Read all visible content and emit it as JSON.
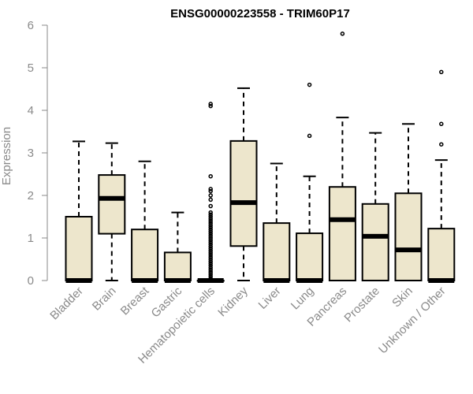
{
  "chart_data": {
    "type": "box",
    "title": "ENSG00000223558 - TRIM60P17",
    "xlabel": "",
    "ylabel": "Expression",
    "ylim": [
      0,
      6
    ],
    "yticks": [
      0,
      1,
      2,
      3,
      4,
      5,
      6
    ],
    "grid": false,
    "legend": "none",
    "box_fill": "#ede6cc",
    "box_stroke": "#000000",
    "categories": [
      "Bladder",
      "Brain",
      "Breast",
      "Gastric",
      "Hematopoietic cells",
      "Kidney",
      "Liver",
      "Lung",
      "Pancreas",
      "Prostate",
      "Skin",
      "Unknown / Other"
    ],
    "boxes": [
      {
        "category": "Bladder",
        "min": 0,
        "q1": 0,
        "median": 0,
        "q3": 1.5,
        "max": 3.27,
        "outliers": []
      },
      {
        "category": "Brain",
        "min": 0,
        "q1": 1.1,
        "median": 1.93,
        "q3": 2.48,
        "max": 3.23,
        "outliers": []
      },
      {
        "category": "Breast",
        "min": 0,
        "q1": 0,
        "median": 0,
        "q3": 1.2,
        "max": 2.8,
        "outliers": []
      },
      {
        "category": "Gastric",
        "min": 0,
        "q1": 0,
        "median": 0,
        "q3": 0.66,
        "max": 1.6,
        "outliers": []
      },
      {
        "category": "Hematopoietic cells",
        "min": 0,
        "q1": 0,
        "median": 0,
        "q3": 0,
        "max": 0,
        "outliers": [
          0.05,
          0.1,
          0.15,
          0.2,
          0.25,
          0.3,
          0.35,
          0.4,
          0.45,
          0.5,
          0.55,
          0.6,
          0.65,
          0.7,
          0.75,
          0.8,
          0.85,
          0.9,
          0.95,
          1.0,
          1.05,
          1.1,
          1.15,
          1.2,
          1.25,
          1.3,
          1.35,
          1.4,
          1.45,
          1.5,
          1.55,
          1.6,
          1.75,
          1.9,
          2.0,
          2.1,
          2.15,
          2.45,
          4.1,
          4.15
        ]
      },
      {
        "category": "Kidney",
        "min": 0,
        "q1": 0.81,
        "median": 1.83,
        "q3": 3.28,
        "max": 4.52,
        "outliers": []
      },
      {
        "category": "Liver",
        "min": 0,
        "q1": 0,
        "median": 0,
        "q3": 1.35,
        "max": 2.75,
        "outliers": []
      },
      {
        "category": "Lung",
        "min": 0,
        "q1": 0,
        "median": 0,
        "q3": 1.11,
        "max": 2.45,
        "outliers": [
          3.4,
          4.6
        ]
      },
      {
        "category": "Pancreas",
        "min": 0,
        "q1": 0,
        "median": 1.43,
        "q3": 2.2,
        "max": 3.83,
        "outliers": [
          5.8
        ]
      },
      {
        "category": "Prostate",
        "min": 0,
        "q1": 0,
        "median": 1.04,
        "q3": 1.8,
        "max": 3.47,
        "outliers": []
      },
      {
        "category": "Skin",
        "min": 0,
        "q1": 0,
        "median": 0.72,
        "q3": 2.05,
        "max": 3.68,
        "outliers": []
      },
      {
        "category": "Unknown / Other",
        "min": 0,
        "q1": 0,
        "median": 0,
        "q3": 1.22,
        "max": 2.83,
        "outliers": [
          3.2,
          3.68,
          4.9
        ]
      }
    ]
  }
}
